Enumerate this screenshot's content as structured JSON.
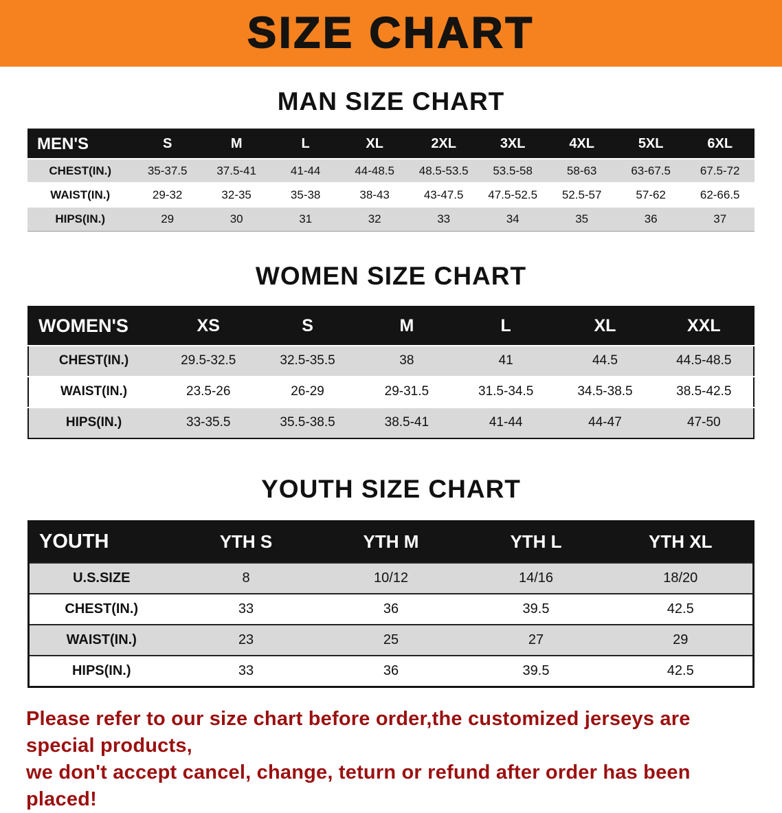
{
  "banner": {
    "title": "SIZE CHART"
  },
  "colors": {
    "banner_bg": "#F5821F",
    "table_header_bg": "#141414",
    "row_stripe": "#d9d9d9",
    "disclaimer_text": "#9b1010"
  },
  "sections": {
    "man": {
      "heading": "MAN SIZE CHART",
      "table": {
        "header": [
          "MEN'S",
          "S",
          "M",
          "L",
          "XL",
          "2XL",
          "3XL",
          "4XL",
          "5XL",
          "6XL"
        ],
        "rows": [
          [
            "CHEST(IN.)",
            "35-37.5",
            "37.5-41",
            "41-44",
            "44-48.5",
            "48.5-53.5",
            "53.5-58",
            "58-63",
            "63-67.5",
            "67.5-72"
          ],
          [
            "WAIST(IN.)",
            "29-32",
            "32-35",
            "35-38",
            "38-43",
            "43-47.5",
            "47.5-52.5",
            "52.5-57",
            "57-62",
            "62-66.5"
          ],
          [
            "HIPS(IN.)",
            "29",
            "30",
            "31",
            "32",
            "33",
            "34",
            "35",
            "36",
            "37"
          ]
        ]
      }
    },
    "women": {
      "heading": "WOMEN SIZE CHART",
      "table": {
        "header": [
          "WOMEN'S",
          "XS",
          "S",
          "M",
          "L",
          "XL",
          "XXL"
        ],
        "rows": [
          [
            "CHEST(IN.)",
            "29.5-32.5",
            "32.5-35.5",
            "38",
            "41",
            "44.5",
            "44.5-48.5"
          ],
          [
            "WAIST(IN.)",
            "23.5-26",
            "26-29",
            "29-31.5",
            "31.5-34.5",
            "34.5-38.5",
            "38.5-42.5"
          ],
          [
            "HIPS(IN.)",
            "33-35.5",
            "35.5-38.5",
            "38.5-41",
            "41-44",
            "44-47",
            "47-50"
          ]
        ]
      }
    },
    "youth": {
      "heading": "YOUTH SIZE CHART",
      "table": {
        "header": [
          "YOUTH",
          "YTH S",
          "YTH M",
          "YTH L",
          "YTH XL"
        ],
        "rows": [
          [
            "U.S.SIZE",
            "8",
            "10/12",
            "14/16",
            "18/20"
          ],
          [
            "CHEST(IN.)",
            "33",
            "36",
            "39.5",
            "42.5"
          ],
          [
            "WAIST(IN.)",
            "23",
            "25",
            "27",
            "29"
          ],
          [
            "HIPS(IN.)",
            "33",
            "36",
            "39.5",
            "42.5"
          ]
        ]
      }
    }
  },
  "footer": {
    "line1": "Please refer to our size chart before order,the customized jerseys are special products,",
    "line2": "we don't accept cancel, change, teturn or refund after order has been placed!"
  }
}
